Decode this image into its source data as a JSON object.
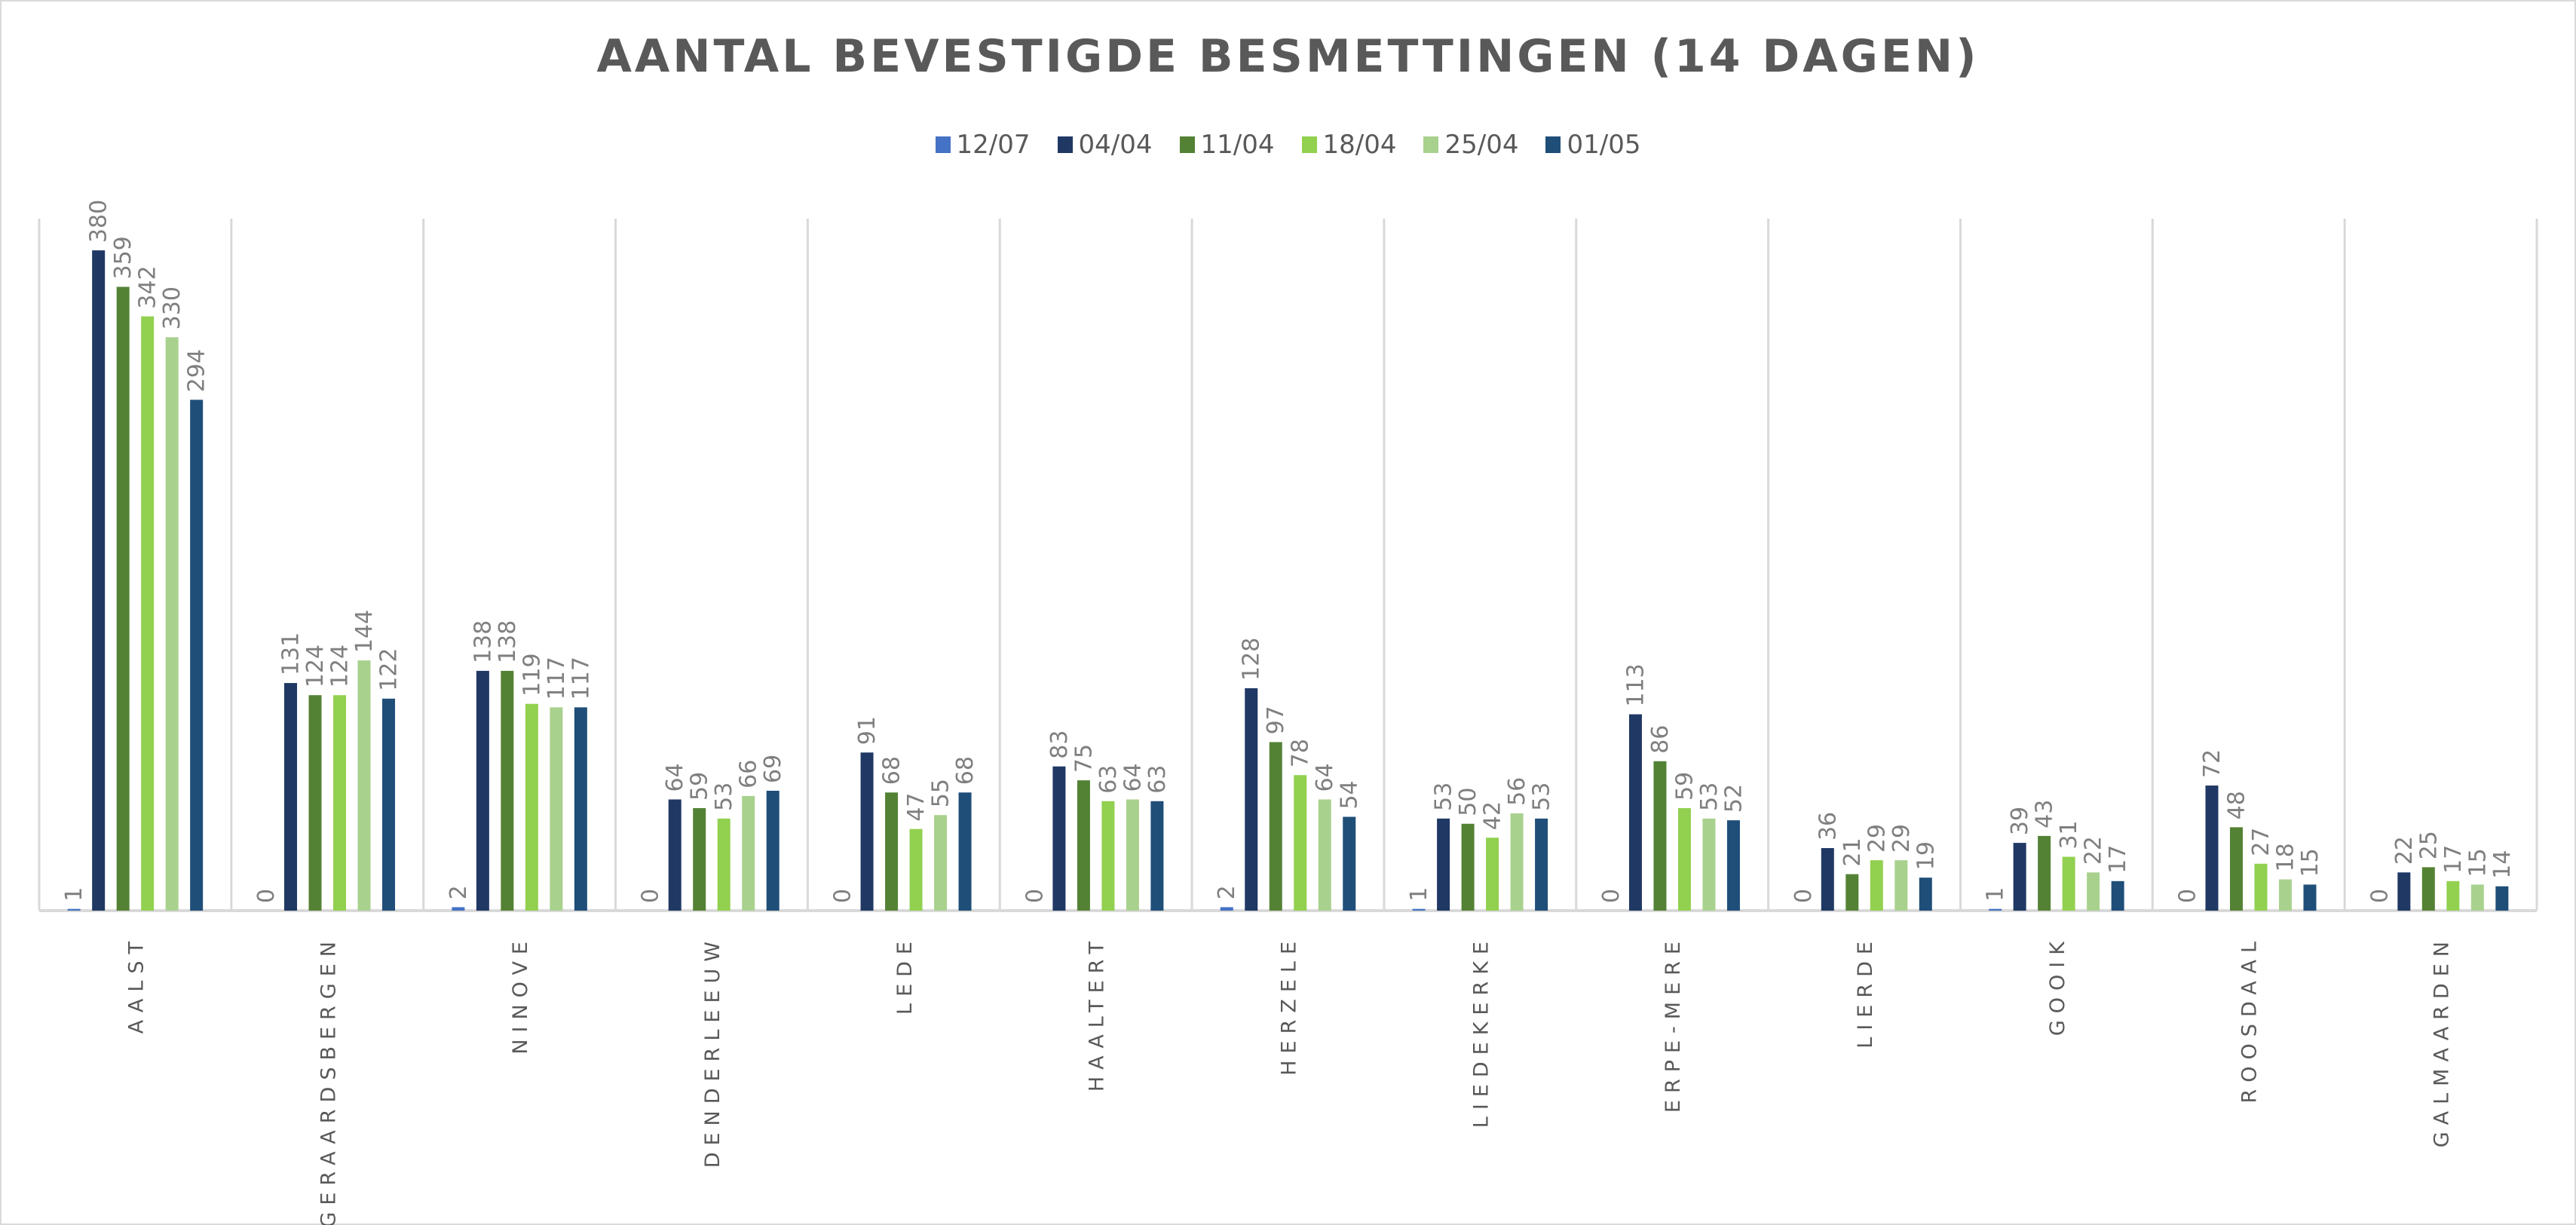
{
  "chart_data": {
    "type": "bar",
    "title": "AANTAL BEVESTIGDE BESMETTINGEN (14 DAGEN)",
    "xlabel": "",
    "ylabel": "",
    "ylim": [
      0,
      400
    ],
    "grid": "vertical category separators",
    "legend_position": "top",
    "categories": [
      "AALST",
      "GERAARDSBERGEN",
      "NINOVE",
      "DENDERLEEUW",
      "LEDE",
      "HAALTERT",
      "HERZELE",
      "LIEDEKERKE",
      "ERPE-MERE",
      "LIERDE",
      "GOOIK",
      "ROOSDAAL",
      "GALMAARDEN"
    ],
    "series": [
      {
        "name": "12/07",
        "color": "#4472c4",
        "values": [
          1,
          0,
          2,
          0,
          0,
          0,
          2,
          1,
          0,
          0,
          1,
          0,
          0
        ]
      },
      {
        "name": "04/04",
        "color": "#203864",
        "values": [
          380,
          131,
          138,
          64,
          91,
          83,
          128,
          53,
          113,
          36,
          39,
          72,
          22
        ]
      },
      {
        "name": "11/04",
        "color": "#548235",
        "values": [
          359,
          124,
          138,
          59,
          68,
          75,
          97,
          50,
          86,
          21,
          43,
          48,
          25
        ]
      },
      {
        "name": "18/04",
        "color": "#92d050",
        "values": [
          342,
          124,
          119,
          53,
          47,
          63,
          78,
          42,
          59,
          29,
          31,
          27,
          17
        ]
      },
      {
        "name": "25/04",
        "color": "#a9d18e",
        "values": [
          330,
          144,
          117,
          66,
          55,
          64,
          64,
          56,
          53,
          29,
          22,
          18,
          15
        ]
      },
      {
        "name": "01/05",
        "color": "#1f4e79",
        "values": [
          294,
          122,
          117,
          69,
          68,
          63,
          54,
          53,
          52,
          19,
          17,
          15,
          14
        ]
      }
    ]
  }
}
